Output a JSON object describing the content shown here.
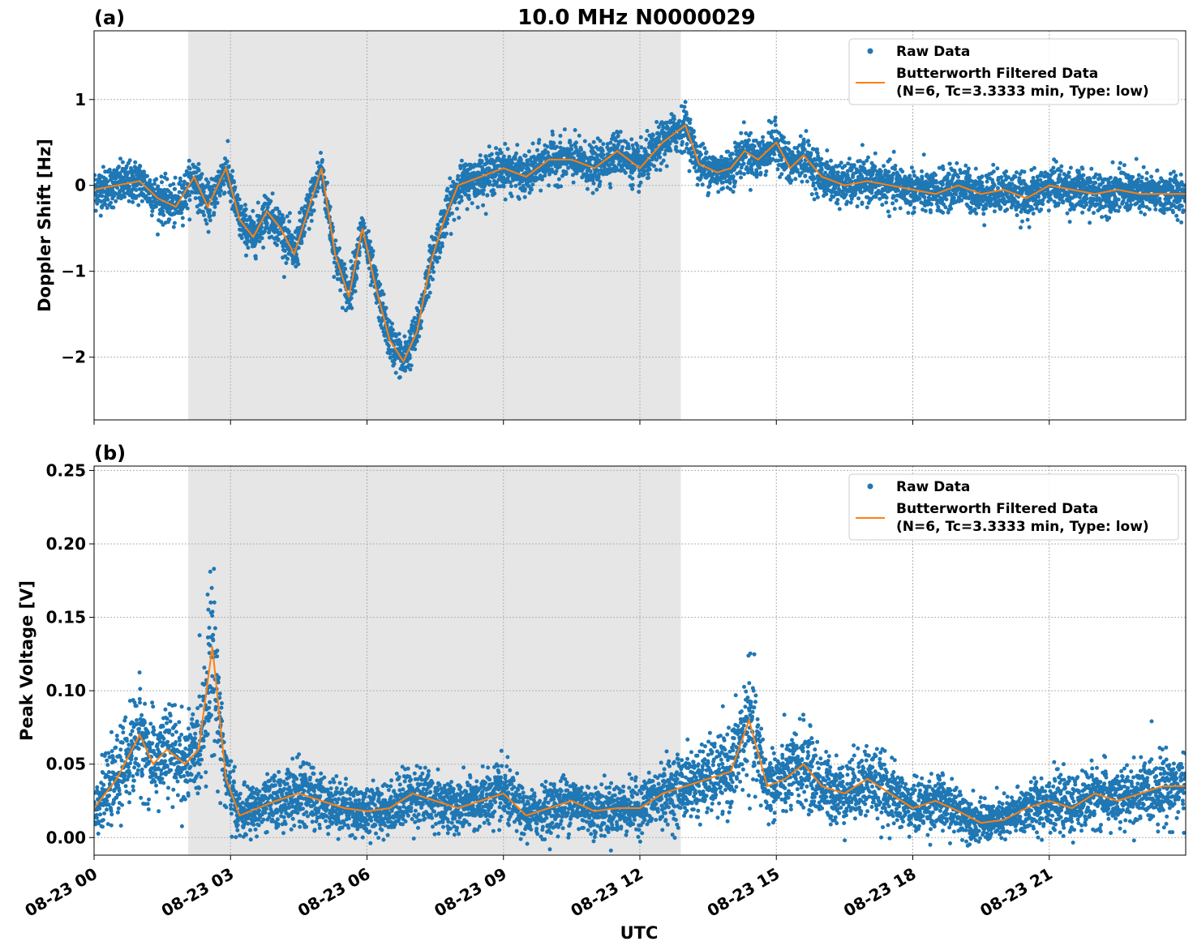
{
  "title": "10.0 MHz N0000029",
  "xlabel": "UTC",
  "colors": {
    "raw": "#1f77b4",
    "filtered": "#ff7f0e",
    "shade": "#e6e6e6",
    "grid": "#b0b0b0"
  },
  "chart_data": [
    {
      "type": "scatter",
      "panel_label": "(a)",
      "ylabel": "Doppler Shift [Hz]",
      "xlim": [
        0,
        24
      ],
      "ylim": [
        -2.73,
        1.8
      ],
      "x_ticks": [
        0,
        3,
        6,
        9,
        12,
        15,
        18,
        21
      ],
      "x_tick_labels": [
        "08-23 00",
        "08-23 03",
        "08-23 06",
        "08-23 09",
        "08-23 12",
        "08-23 15",
        "08-23 18",
        "08-23 21"
      ],
      "y_ticks": [
        -2,
        -1,
        0,
        1
      ],
      "y_tick_labels": [
        "−2",
        "−1",
        "0",
        "1"
      ],
      "shaded_span": [
        2.07,
        12.9
      ],
      "grid": true,
      "legend_position": "top-right",
      "legend": [
        {
          "marker": "dot",
          "label": "Raw Data"
        },
        {
          "marker": "line",
          "label": "Butterworth Filtered Data",
          "label2": "(N=6, Tc=3.3333 min, Type: low)"
        }
      ],
      "series": [
        {
          "name": "Butterworth Filtered Data",
          "x": [
            0,
            0.5,
            1.0,
            1.4,
            1.8,
            2.2,
            2.5,
            2.9,
            3.2,
            3.5,
            3.8,
            4.1,
            4.4,
            4.7,
            5.0,
            5.3,
            5.6,
            5.9,
            6.2,
            6.5,
            6.8,
            7.1,
            7.4,
            7.7,
            8.0,
            8.5,
            9.0,
            9.5,
            10.0,
            10.5,
            11.0,
            11.5,
            12.0,
            12.5,
            13.0,
            13.3,
            13.7,
            14.0,
            14.3,
            14.6,
            15.0,
            15.3,
            15.6,
            16.0,
            16.5,
            17.0,
            17.5,
            18.0,
            18.5,
            19.0,
            19.5,
            20.0,
            20.5,
            21.0,
            21.5,
            22.0,
            22.5,
            23.0,
            23.5,
            24.0
          ],
          "y": [
            -0.05,
            0.0,
            0.05,
            -0.15,
            -0.25,
            0.1,
            -0.25,
            0.2,
            -0.4,
            -0.6,
            -0.3,
            -0.5,
            -0.8,
            -0.3,
            0.2,
            -0.8,
            -1.3,
            -0.5,
            -1.2,
            -1.8,
            -2.05,
            -1.7,
            -0.9,
            -0.4,
            0.0,
            0.1,
            0.2,
            0.1,
            0.3,
            0.3,
            0.2,
            0.4,
            0.2,
            0.5,
            0.7,
            0.25,
            0.15,
            0.2,
            0.4,
            0.3,
            0.5,
            0.2,
            0.35,
            0.1,
            0.0,
            0.05,
            0.0,
            -0.05,
            -0.1,
            0.0,
            -0.1,
            -0.05,
            -0.15,
            0.0,
            -0.05,
            -0.1,
            -0.05,
            -0.1,
            -0.1,
            -0.1
          ]
        }
      ]
    },
    {
      "type": "scatter",
      "panel_label": "(b)",
      "ylabel": "Peak Voltage [V]",
      "xlim": [
        0,
        24
      ],
      "ylim": [
        -0.012,
        0.253
      ],
      "x_ticks": [
        0,
        3,
        6,
        9,
        12,
        15,
        18,
        21
      ],
      "x_tick_labels": [
        "08-23 00",
        "08-23 03",
        "08-23 06",
        "08-23 09",
        "08-23 12",
        "08-23 15",
        "08-23 18",
        "08-23 21"
      ],
      "y_ticks": [
        0.0,
        0.05,
        0.1,
        0.15,
        0.2,
        0.25
      ],
      "y_tick_labels": [
        "0.00",
        "0.05",
        "0.10",
        "0.15",
        "0.20",
        "0.25"
      ],
      "shaded_span": [
        2.07,
        12.9
      ],
      "grid": true,
      "legend_position": "top-right",
      "legend": [
        {
          "marker": "dot",
          "label": "Raw Data"
        },
        {
          "marker": "line",
          "label": "Butterworth Filtered Data",
          "label2": "(N=6, Tc=3.3333 min, Type: low)"
        }
      ],
      "series": [
        {
          "name": "Butterworth Filtered Data",
          "x": [
            0,
            0.5,
            1.0,
            1.3,
            1.6,
            2.0,
            2.3,
            2.6,
            2.9,
            3.2,
            3.6,
            4.0,
            4.5,
            5.0,
            5.5,
            6.0,
            6.5,
            7.0,
            7.5,
            8.0,
            8.5,
            9.0,
            9.5,
            10.0,
            10.5,
            11.0,
            11.5,
            12.0,
            12.5,
            13.0,
            13.5,
            14.0,
            14.4,
            14.8,
            15.2,
            15.6,
            16.0,
            16.5,
            17.0,
            17.5,
            18.0,
            18.5,
            19.0,
            19.5,
            20.0,
            20.5,
            21.0,
            21.5,
            22.0,
            22.5,
            23.0,
            23.5,
            24.0
          ],
          "y": [
            0.02,
            0.04,
            0.07,
            0.05,
            0.06,
            0.05,
            0.06,
            0.13,
            0.04,
            0.015,
            0.02,
            0.025,
            0.03,
            0.025,
            0.02,
            0.018,
            0.02,
            0.03,
            0.025,
            0.02,
            0.025,
            0.03,
            0.015,
            0.02,
            0.025,
            0.018,
            0.02,
            0.02,
            0.03,
            0.035,
            0.04,
            0.045,
            0.08,
            0.035,
            0.04,
            0.05,
            0.035,
            0.03,
            0.04,
            0.03,
            0.02,
            0.025,
            0.018,
            0.01,
            0.012,
            0.02,
            0.025,
            0.02,
            0.03,
            0.025,
            0.03,
            0.035,
            0.035
          ]
        }
      ]
    }
  ]
}
